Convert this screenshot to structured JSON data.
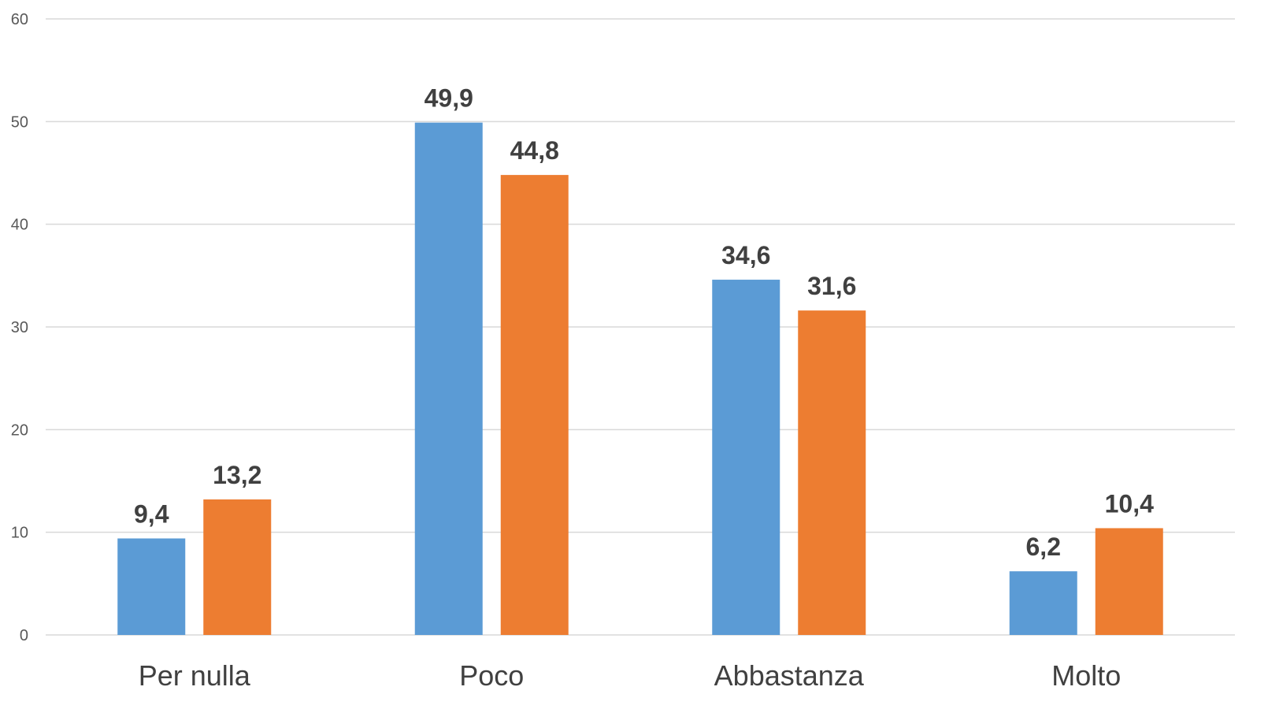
{
  "chart_data": {
    "type": "bar",
    "categories": [
      "Per nulla",
      "Poco",
      "Abbastanza",
      "Molto"
    ],
    "series": [
      {
        "values": [
          9.4,
          49.9,
          34.6,
          6.2
        ],
        "color": "#5b9bd5"
      },
      {
        "values": [
          13.2,
          44.8,
          31.6,
          10.4
        ],
        "color": "#ed7d31"
      }
    ],
    "data_labels": [
      [
        "9,4",
        "49,9",
        "34,6",
        "6,2"
      ],
      [
        "13,2",
        "44,8",
        "31,6",
        "10,4"
      ]
    ],
    "y_ticks": [
      "0",
      "10",
      "20",
      "30",
      "40",
      "50",
      "60"
    ],
    "ylim": [
      0,
      60
    ],
    "grid": true,
    "legend": false
  }
}
